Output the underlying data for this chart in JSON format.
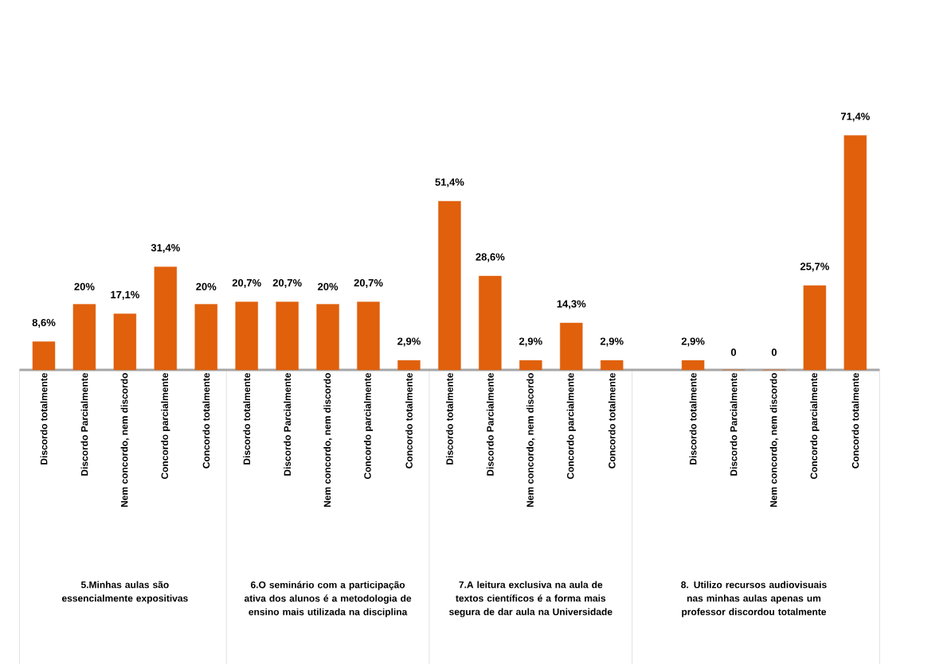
{
  "chart_data": {
    "type": "bar",
    "categories": [
      "Discordo totalmente",
      "Discordo Parcialmente",
      "Nem concordo, nem discordo",
      "Concordo parcialmente",
      "Concordo totalmente",
      "Discordo totalmente",
      "Discordo Parcialmente",
      "Nem concordo, nem discordo",
      "Concordo parcialmente",
      "Concordo totalmente",
      "Discordo totalmente",
      "Discordo Parcialmente",
      "Nem concordo, nem discordo",
      "Concordo parcialmente",
      "Concordo totalmente",
      null,
      "Discordo totalmente",
      "Discordo Parcialmente",
      "Nem concordo, nem discordo",
      "Concordo parcialmente",
      "Concordo totalmente"
    ],
    "values": [
      8.6,
      20,
      17.1,
      31.4,
      20,
      20.7,
      20.7,
      20,
      20.7,
      2.9,
      51.4,
      28.6,
      2.9,
      14.3,
      2.9,
      null,
      2.9,
      0,
      0,
      25.7,
      71.4
    ],
    "value_labels": [
      "8,6%",
      "20%",
      "17,1%",
      "31,4%",
      "20%",
      "20,7%",
      "20,7%",
      "20%",
      "20,7%",
      "2,9%",
      "51,4%",
      "28,6%",
      "2,9%",
      "14,3%",
      "2,9%",
      null,
      "2,9%",
      "0",
      "0",
      "25,7%",
      "71,4%"
    ],
    "color": "#e0600c",
    "annotations": [
      "5.Minhas aulas são essencialmente expositivas",
      "6.O seminário com a participação ativa dos alunos é a metodologia de ensino mais utilizada na disciplina",
      "7.A leitura exclusiva na aula de textos científicos é a forma mais segura de dar aula na Universidade",
      "8. Utilizo recursos audiovisuais nas minhas aulas apenas um professor discordou totalmente"
    ]
  }
}
